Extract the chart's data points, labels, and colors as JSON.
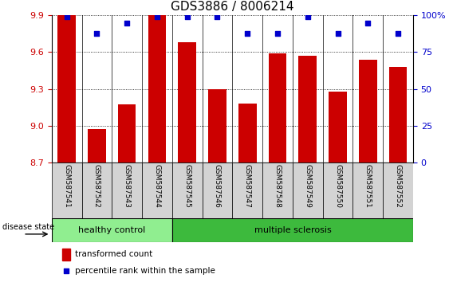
{
  "title": "GDS3886 / 8006214",
  "samples": [
    "GSM587541",
    "GSM587542",
    "GSM587543",
    "GSM587544",
    "GSM587545",
    "GSM587546",
    "GSM587547",
    "GSM587548",
    "GSM587549",
    "GSM587550",
    "GSM587551",
    "GSM587552"
  ],
  "bar_values": [
    9.9,
    8.97,
    9.17,
    9.9,
    9.68,
    9.3,
    9.18,
    9.59,
    9.57,
    9.28,
    9.54,
    9.48
  ],
  "percentile_values": [
    99,
    88,
    95,
    99,
    99,
    99,
    88,
    88,
    99,
    88,
    95,
    88
  ],
  "ylim_left": [
    8.7,
    9.9
  ],
  "ylim_right": [
    0,
    100
  ],
  "yticks_left": [
    8.7,
    9.0,
    9.3,
    9.6,
    9.9
  ],
  "yticks_right": [
    0,
    25,
    50,
    75,
    100
  ],
  "bar_color": "#cc0000",
  "dot_color": "#0000cc",
  "bar_bottom": 8.7,
  "healthy_count": 4,
  "healthy_label": "healthy control",
  "ms_label": "multiple sclerosis",
  "legend_bar_label": "transformed count",
  "legend_dot_label": "percentile rank within the sample",
  "disease_state_label": "disease state",
  "healthy_color": "#90ee90",
  "ms_color": "#3dba3d",
  "ax_label_color_left": "#cc0000",
  "ax_label_color_right": "#0000cc",
  "title_fontsize": 11,
  "tick_fontsize": 8
}
